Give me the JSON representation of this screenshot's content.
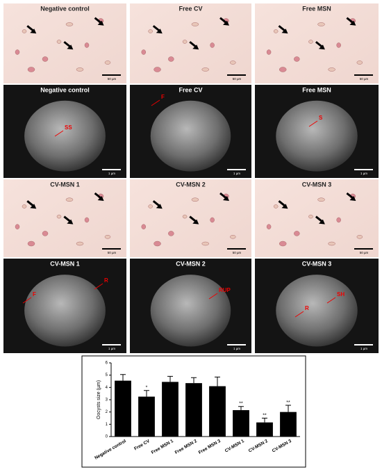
{
  "panels": [
    {
      "title": "Negative control",
      "scale_bar": "50 µm"
    },
    {
      "title": "Free CV",
      "scale_bar": "50 µm"
    },
    {
      "title": "Free MSN",
      "scale_bar": "50 µm"
    },
    {
      "title": "Negative control",
      "scale_bar": "1 µm",
      "labels": [
        "SS"
      ]
    },
    {
      "title": "Free CV",
      "scale_bar": "1 µm",
      "labels": [
        "F"
      ]
    },
    {
      "title": "Free MSN",
      "scale_bar": "1 µm",
      "labels": [
        "S"
      ]
    },
    {
      "title": "CV-MSN 1",
      "scale_bar": "50 µm"
    },
    {
      "title": "CV-MSN 2",
      "scale_bar": "50 µm"
    },
    {
      "title": "CV-MSN 3",
      "scale_bar": "50 µm"
    },
    {
      "title": "CV-MSN 1",
      "scale_bar": "1 µm",
      "labels": [
        "F",
        "R"
      ]
    },
    {
      "title": "CV-MSN 2",
      "scale_bar": "1 µm",
      "labels": [
        "RUP"
      ]
    },
    {
      "title": "CV-MSN 3",
      "scale_bar": "1 µm",
      "labels": [
        "SH",
        "R"
      ]
    }
  ],
  "chart_data": {
    "type": "bar",
    "y_label": "Oocysts size (µm)",
    "categories": [
      "Negative control",
      "Free CV",
      "Free MSN 1",
      "Free MSN 2",
      "Free MSN 3",
      "CV-MSN 1",
      "CV-MSN 2",
      "CV-MSN 3"
    ],
    "values": [
      4.55,
      3.25,
      4.45,
      4.35,
      4.1,
      2.15,
      1.15,
      2.0
    ],
    "errors": [
      0.5,
      0.5,
      0.45,
      0.45,
      0.75,
      0.3,
      0.35,
      0.55
    ],
    "color": "#000000",
    "ylim": [
      0,
      6
    ],
    "yticks": [
      0,
      1,
      2,
      3,
      4,
      5,
      6
    ],
    "annotations": [
      {
        "category": "Free CV",
        "text": "*"
      },
      {
        "category": "CV-MSN 1",
        "text": "**"
      },
      {
        "category": "CV-MSN 2",
        "text": "**"
      },
      {
        "category": "CV-MSN 3",
        "text": "**"
      }
    ]
  }
}
